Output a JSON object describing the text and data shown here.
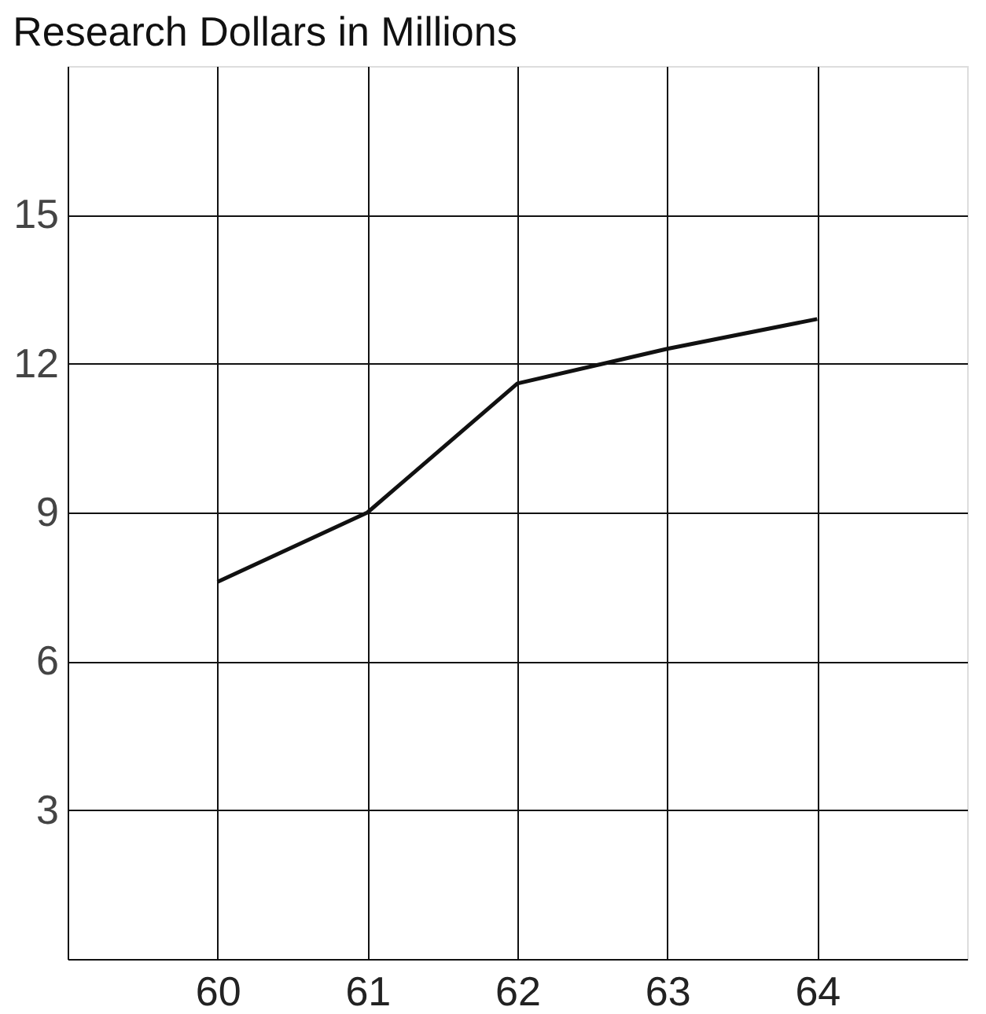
{
  "chart_data": {
    "type": "line",
    "title": "Research Dollars  in Millions",
    "x": [
      60,
      61,
      62,
      63,
      64
    ],
    "series": [
      {
        "color": "#111111",
        "values": [
          7.6,
          9.0,
          11.6,
          12.3,
          12.9
        ]
      }
    ],
    "xlim": [
      59,
      65
    ],
    "xticks": [
      60,
      61,
      62,
      63,
      64
    ],
    "ylim": [
      0,
      18
    ],
    "yticks": [
      3,
      6,
      9,
      12,
      15
    ],
    "grid": true,
    "legend": false,
    "marker": "none",
    "line_style": "solid"
  }
}
